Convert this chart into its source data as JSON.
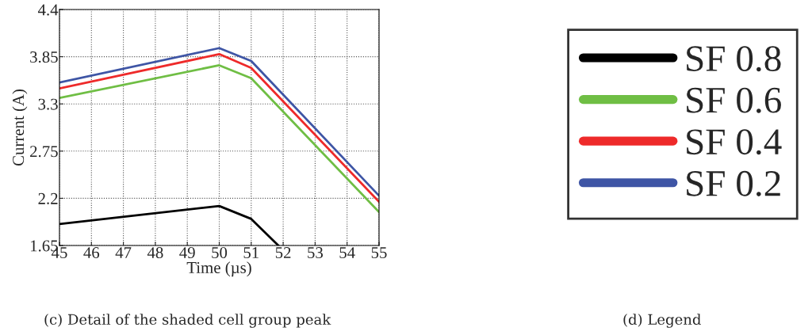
{
  "chart_data": {
    "type": "line",
    "xlabel": "Time (µs)",
    "ylabel": "Current (A)",
    "x": [
      45,
      50,
      51,
      55
    ],
    "series": [
      {
        "name": "SF 0.8",
        "color": "#000000",
        "x": [
          45,
          50,
          51,
          51.85
        ],
        "values": [
          1.9,
          2.11,
          1.96,
          1.65
        ]
      },
      {
        "name": "SF 0.6",
        "color": "#6fbe44",
        "values": [
          3.37,
          3.75,
          3.6,
          2.04
        ]
      },
      {
        "name": "SF 0.4",
        "color": "#ee2a2a",
        "values": [
          3.48,
          3.88,
          3.72,
          2.16
        ]
      },
      {
        "name": "SF 0.2",
        "color": "#3e55a5",
        "values": [
          3.55,
          3.95,
          3.8,
          2.23
        ]
      }
    ],
    "xlim": [
      45,
      55
    ],
    "xticks": [
      45,
      46,
      47,
      48,
      49,
      50,
      51,
      52,
      53,
      54,
      55
    ],
    "ylim": [
      1.65,
      4.4
    ],
    "yticks": [
      1.65,
      2.2,
      2.75,
      3.3,
      3.85,
      4.4
    ],
    "grid": true,
    "legend": "right",
    "line_style": "solid",
    "marker": "none",
    "annotations": [
      "(c) Detail of the shaded cell group peak",
      "(d) Legend"
    ]
  }
}
